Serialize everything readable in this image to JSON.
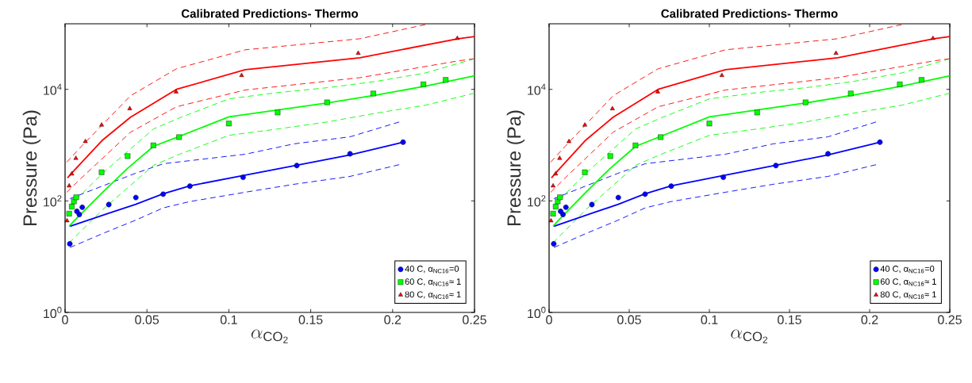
{
  "chart_data": [
    {
      "type": "line",
      "title": "Calibrated Predictions- Thermo",
      "xlabel": "\\alpha_{\\mathrm{CO_2}}",
      "ylabel": "Pressure (Pa)",
      "log": "y",
      "legend": "bottom right",
      "grid": false,
      "xlim": [
        0,
        0.25
      ],
      "ylim": [
        1,
        150000
      ],
      "xticks": [
        0,
        0.05,
        0.1,
        0.15,
        0.2,
        0.25
      ],
      "yticks": [
        {
          "value": 1,
          "label": "10$^{0}$"
        },
        {
          "value": 100,
          "label": "10$^{2}$"
        },
        {
          "value": 10000,
          "label": "10$^{4}$"
        }
      ],
      "series": [
        {
          "type": "line",
          "color": "#0000ff",
          "line_style": "dashed",
          "x": [
            0.003,
            0.043,
            0.06,
            0.11,
            0.14,
            0.174,
            0.204
          ],
          "values": [
            110,
            313,
            464,
            687,
            1057,
            1410,
            2600
          ]
        },
        {
          "type": "line",
          "color": "#0000ff",
          "line_style": "dashed",
          "x": [
            0.003,
            0.023,
            0.043,
            0.06,
            0.076,
            0.11,
            0.14,
            0.174,
            0.204
          ],
          "values": [
            14.6,
            26,
            45,
            75,
            97,
            143,
            199,
            275,
            446
          ]
        },
        {
          "type": "line",
          "color": "#00ff00",
          "line_style": "dashed",
          "x": [
            0.0025,
            0.023,
            0.054,
            0.07,
            0.1,
            0.13,
            0.16,
            0.19,
            0.22,
            0.25
          ],
          "values": [
            80,
            314,
            1950,
            3090,
            6760,
            8770,
            10700,
            13900,
            19700,
            35500
          ]
        },
        {
          "type": "line",
          "color": "#00ff00",
          "line_style": "dashed",
          "x": [
            0.0025,
            0.023,
            0.054,
            0.07,
            0.1,
            0.13,
            0.16,
            0.19,
            0.22,
            0.25
          ],
          "values": [
            17.7,
            70,
            435,
            687,
            1500,
            1950,
            2600,
            3750,
            5200,
            8550
          ]
        },
        {
          "type": "line",
          "color": "#ff0000",
          "line_style": "dashed",
          "x": [
            0.001,
            0.01,
            0.04,
            0.068,
            0.11,
            0.18,
            0.22
          ],
          "values": [
            495,
            952,
            7700,
            23400,
            51200,
            80900,
            145000
          ]
        },
        {
          "type": "line",
          "color": "#ff0000",
          "line_style": "dashed",
          "x": [
            0.001,
            0.01,
            0.04,
            0.068,
            0.11,
            0.18,
            0.24,
            0.25
          ],
          "values": [
            143,
            258,
            1710,
            4870,
            9750,
            16200,
            32400,
            35500
          ]
        },
        {
          "type": "line",
          "color": "#0000ff",
          "line_style": "solid",
          "x": [
            0.003,
            0.0267,
            0.0432,
            0.0599,
            0.0762,
            0.1087,
            0.1415,
            0.174,
            0.2064
          ],
          "values": [
            35,
            60,
            87,
            134,
            186,
            286,
            435,
            669,
            1129
          ]
        },
        {
          "type": "line",
          "color": "#00ff00",
          "line_style": "solid",
          "x": [
            0.0025,
            0.0065,
            0.023,
            0.038,
            0.054,
            0.069,
            0.1,
            0.13,
            0.16,
            0.19,
            0.22,
            0.25
          ],
          "values": [
            35,
            47,
            143,
            380,
            952,
            1410,
            3210,
            4280,
            5700,
            7900,
            11400,
            17500
          ]
        },
        {
          "type": "line",
          "color": "#ff0000",
          "line_style": "solid",
          "x": [
            0.0015,
            0.004,
            0.023,
            0.04,
            0.068,
            0.11,
            0.18,
            0.24,
            0.25
          ],
          "values": [
            258,
            314,
            1240,
            3170,
            10000,
            22500,
            36900,
            80900,
            88700
          ]
        },
        {
          "type": "scatter",
          "name": "40 C, α$_{NC16}$=0",
          "color": "#0000ff",
          "marker": "circle",
          "x": [
            0.0029,
            0.0072,
            0.0087,
            0.0105,
            0.0267,
            0.0432,
            0.0599,
            0.0762,
            0.1087,
            0.1415,
            0.174,
            0.2064
          ],
          "values": [
            17,
            65,
            57,
            77,
            86,
            115,
            132,
            184,
            265,
            430,
            700,
            1130
          ]
        },
        {
          "type": "scatter",
          "name": "60 C, α$_{NC16}$≈ 1",
          "color": "#00ff00",
          "marker": "square",
          "x": [
            0.0025,
            0.0041,
            0.0054,
            0.0068,
            0.0223,
            0.0382,
            0.0539,
            0.0696,
            0.1,
            0.1298,
            0.16,
            0.1882,
            0.2188,
            0.2324
          ],
          "values": [
            59,
            79,
            98,
            116,
            326,
            635,
            990,
            1390,
            2440,
            3850,
            5850,
            8430,
            12300,
            14800
          ]
        },
        {
          "type": "scatter",
          "name": "80 C, α$_{NC16}$≈ 1",
          "color": "#ff0000",
          "marker": "triangle",
          "x": [
            0.0012,
            0.0025,
            0.0041,
            0.0066,
            0.0124,
            0.0223,
            0.0395,
            0.0678,
            0.1078,
            0.179,
            0.2395
          ],
          "values": [
            44,
            186,
            305,
            580,
            1160,
            2290,
            4510,
            9010,
            17800,
            44400,
            82000
          ]
        }
      ]
    },
    {
      "type": "line",
      "title": "Calibrated Predictions- Thermo",
      "xlabel": "\\alpha_{\\mathrm{CO_2}}",
      "ylabel": "Pressure (Pa)",
      "log": "y",
      "legend": "bottom right",
      "grid": false,
      "xlim": [
        0,
        0.25
      ],
      "ylim": [
        1,
        150000
      ],
      "xticks": [
        0,
        0.05,
        0.1,
        0.15,
        0.2,
        0.25
      ],
      "yticks": [
        {
          "value": 1,
          "label": "10$^{0}$"
        },
        {
          "value": 100,
          "label": "10$^{2}$"
        },
        {
          "value": 10000,
          "label": "10$^{4}$"
        }
      ],
      "series": [
        {
          "type": "line",
          "color": "#0000ff",
          "line_style": "dashed",
          "x": [
            0.003,
            0.043,
            0.06,
            0.11,
            0.14,
            0.174,
            0.204
          ],
          "values": [
            110,
            313,
            464,
            687,
            1057,
            1410,
            2600
          ]
        },
        {
          "type": "line",
          "color": "#0000ff",
          "line_style": "dashed",
          "x": [
            0.003,
            0.023,
            0.043,
            0.06,
            0.076,
            0.11,
            0.14,
            0.174,
            0.204
          ],
          "values": [
            14.6,
            26,
            45,
            75,
            97,
            143,
            199,
            275,
            446
          ]
        },
        {
          "type": "line",
          "color": "#00ff00",
          "line_style": "dashed",
          "x": [
            0.0025,
            0.023,
            0.054,
            0.07,
            0.1,
            0.13,
            0.16,
            0.19,
            0.22,
            0.25
          ],
          "values": [
            80,
            314,
            1950,
            3090,
            6760,
            8770,
            10700,
            13900,
            19700,
            35500
          ]
        },
        {
          "type": "line",
          "color": "#00ff00",
          "line_style": "dashed",
          "x": [
            0.0025,
            0.023,
            0.054,
            0.07,
            0.1,
            0.13,
            0.16,
            0.19,
            0.22,
            0.25
          ],
          "values": [
            17.7,
            70,
            435,
            687,
            1500,
            1950,
            2600,
            3750,
            5200,
            8550
          ]
        },
        {
          "type": "line",
          "color": "#ff0000",
          "line_style": "dashed",
          "x": [
            0.001,
            0.01,
            0.04,
            0.068,
            0.11,
            0.18,
            0.22
          ],
          "values": [
            495,
            952,
            7700,
            23400,
            51200,
            80900,
            145000
          ]
        },
        {
          "type": "line",
          "color": "#ff0000",
          "line_style": "dashed",
          "x": [
            0.001,
            0.01,
            0.04,
            0.068,
            0.11,
            0.18,
            0.24,
            0.25
          ],
          "values": [
            143,
            258,
            1710,
            4870,
            9750,
            16200,
            32400,
            35500
          ]
        },
        {
          "type": "line",
          "color": "#0000ff",
          "line_style": "solid",
          "x": [
            0.003,
            0.0267,
            0.0432,
            0.0599,
            0.0762,
            0.1087,
            0.1415,
            0.174,
            0.2064
          ],
          "values": [
            35,
            60,
            87,
            134,
            186,
            286,
            435,
            669,
            1129
          ]
        },
        {
          "type": "line",
          "color": "#00ff00",
          "line_style": "solid",
          "x": [
            0.0025,
            0.0065,
            0.023,
            0.038,
            0.054,
            0.069,
            0.1,
            0.13,
            0.16,
            0.19,
            0.22,
            0.25
          ],
          "values": [
            35,
            47,
            143,
            380,
            952,
            1410,
            3210,
            4280,
            5700,
            7900,
            11400,
            17500
          ]
        },
        {
          "type": "line",
          "color": "#ff0000",
          "line_style": "solid",
          "x": [
            0.0015,
            0.004,
            0.023,
            0.04,
            0.068,
            0.11,
            0.18,
            0.24,
            0.25
          ],
          "values": [
            258,
            314,
            1240,
            3170,
            10000,
            22500,
            36900,
            80900,
            88700
          ]
        },
        {
          "type": "scatter",
          "name": "40 C, α$_{NC16}$=0",
          "color": "#0000ff",
          "marker": "circle",
          "x": [
            0.0029,
            0.0072,
            0.0087,
            0.0105,
            0.0267,
            0.0432,
            0.0599,
            0.0762,
            0.1087,
            0.1415,
            0.174,
            0.2064
          ],
          "values": [
            17,
            65,
            57,
            77,
            86,
            115,
            132,
            184,
            265,
            430,
            700,
            1130
          ]
        },
        {
          "type": "scatter",
          "name": "60 C, α$_{NC16}$≈ 1",
          "color": "#00ff00",
          "marker": "square",
          "x": [
            0.0025,
            0.0041,
            0.0054,
            0.0068,
            0.0223,
            0.0382,
            0.0539,
            0.0696,
            0.1,
            0.1298,
            0.16,
            0.1882,
            0.2188,
            0.2324
          ],
          "values": [
            59,
            79,
            98,
            116,
            326,
            635,
            990,
            1390,
            2440,
            3850,
            5850,
            8430,
            12300,
            14800
          ]
        },
        {
          "type": "scatter",
          "name": "80 C, α$_{NC16}$≈ 1",
          "color": "#ff0000",
          "marker": "triangle",
          "x": [
            0.0012,
            0.0025,
            0.0041,
            0.0066,
            0.0124,
            0.0223,
            0.0395,
            0.0678,
            0.1078,
            0.179,
            0.2395
          ],
          "values": [
            44,
            186,
            305,
            580,
            1160,
            2290,
            4510,
            9010,
            17800,
            44400,
            82000
          ]
        }
      ]
    }
  ]
}
